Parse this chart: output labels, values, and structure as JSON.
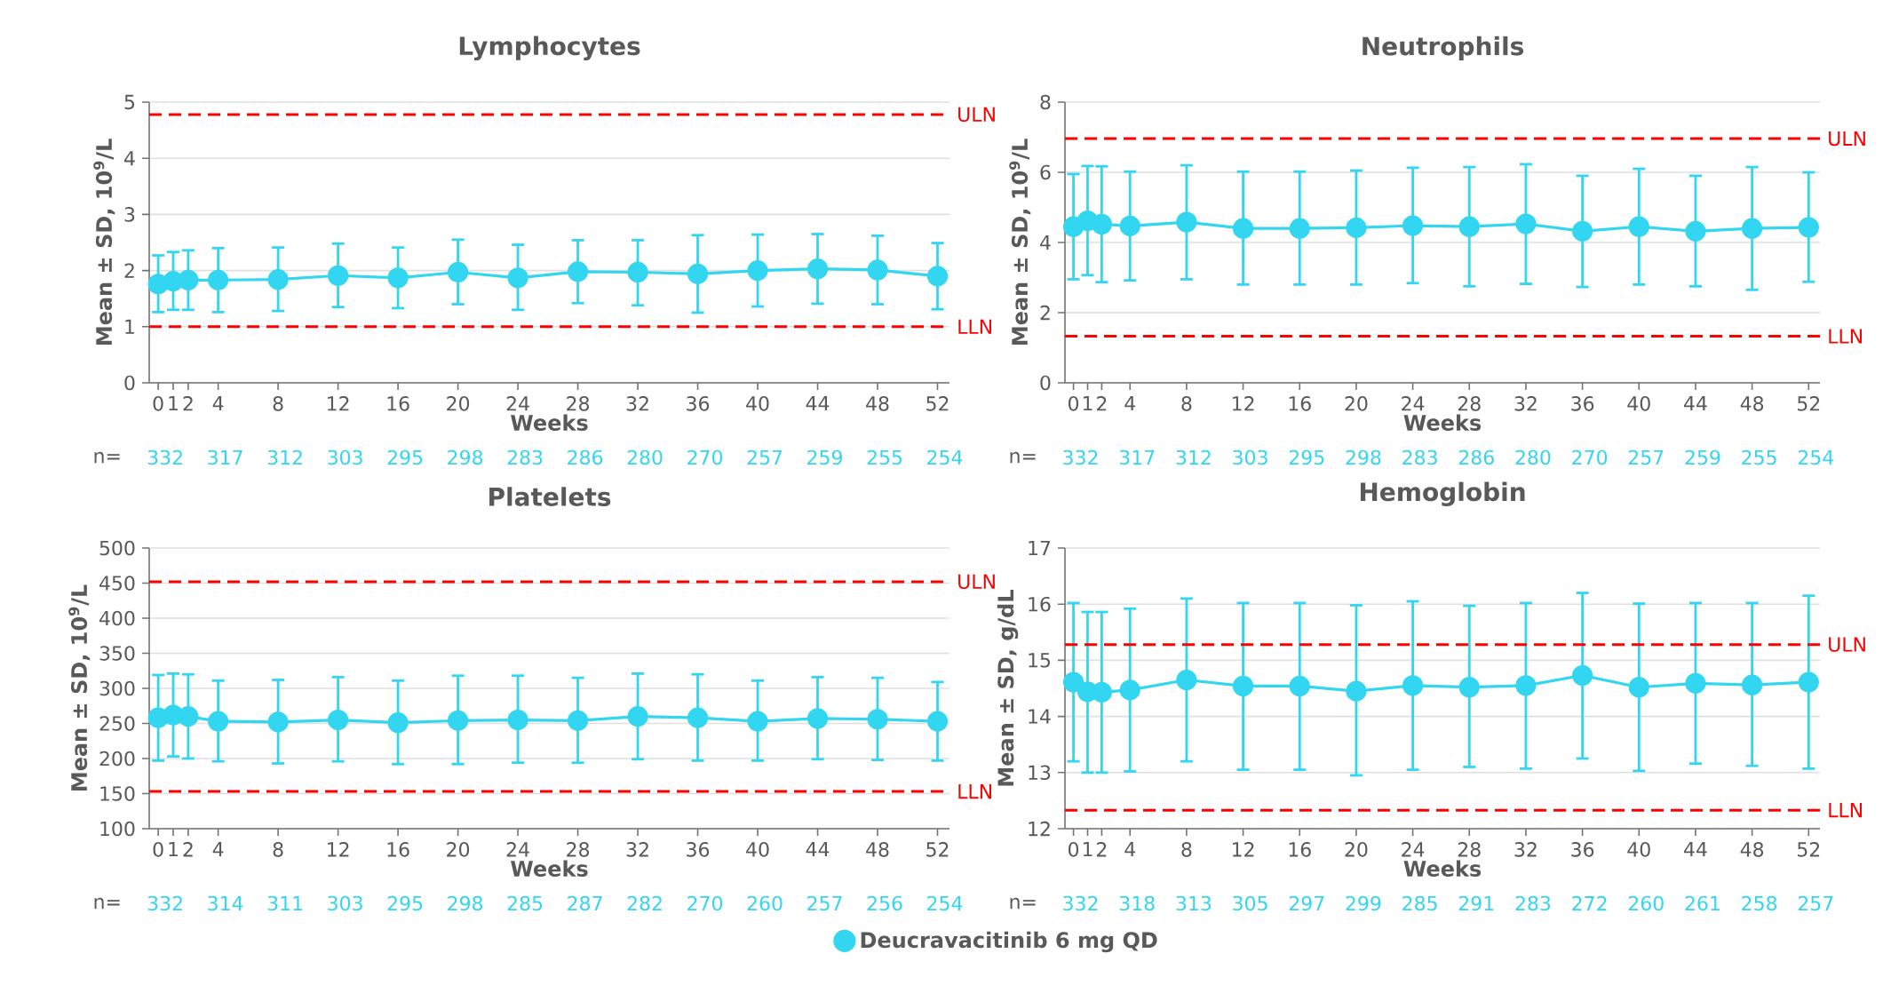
{
  "chart_data": [
    {
      "type": "line",
      "title": "Lymphocytes",
      "xlabel": "Weeks",
      "ylabel": "Mean ± SD, 10$^{9}$/L",
      "x": [
        0,
        1,
        2,
        4,
        8,
        12,
        16,
        20,
        24,
        28,
        32,
        36,
        40,
        44,
        48,
        52
      ],
      "series": [
        {
          "color": "#33d6f0",
          "values": [
            1.76,
            1.81,
            1.83,
            1.83,
            1.84,
            1.91,
            1.87,
            1.97,
            1.87,
            1.98,
            1.97,
            1.94,
            2.0,
            2.03,
            2.01,
            1.9
          ],
          "errors": [
            [
              1.26,
              2.27
            ],
            [
              1.3,
              2.33
            ],
            [
              1.3,
              2.36
            ],
            [
              1.26,
              2.4
            ],
            [
              1.28,
              2.41
            ],
            [
              1.35,
              2.48
            ],
            [
              1.33,
              2.41
            ],
            [
              1.4,
              2.55
            ],
            [
              1.3,
              2.46
            ],
            [
              1.42,
              2.54
            ],
            [
              1.38,
              2.54
            ],
            [
              1.25,
              2.63
            ],
            [
              1.36,
              2.64
            ],
            [
              1.41,
              2.65
            ],
            [
              1.4,
              2.62
            ],
            [
              1.31,
              2.49
            ]
          ]
        }
      ],
      "xlim": [
        -0.6,
        52.8
      ],
      "xticks": [
        0,
        1,
        2,
        4,
        8,
        12,
        16,
        20,
        24,
        28,
        32,
        36,
        40,
        44,
        48,
        52
      ],
      "ylim": [
        0,
        5
      ],
      "yticks": [
        0,
        1,
        2,
        3,
        4,
        5
      ],
      "ref_lines": [
        {
          "axis": "y",
          "value": 4.78,
          "label": "ULN",
          "color": "#ff0000",
          "line_style": "dashed"
        },
        {
          "axis": "y",
          "value": 1.0,
          "label": "LLN",
          "color": "#ff0000",
          "line_style": "dashed"
        }
      ],
      "annotations": [
        "n=",
        "332",
        "317",
        "312",
        "303",
        "295",
        "298",
        "283",
        "286",
        "280",
        "270",
        "257",
        "259",
        "255",
        "254"
      ],
      "grid": "y",
      "marker": "circle",
      "line_style": "solid"
    },
    {
      "type": "line",
      "title": "Neutrophils",
      "xlabel": "Weeks",
      "ylabel": "Mean ± SD, 10$^{9}$/L",
      "x": [
        0,
        1,
        2,
        4,
        8,
        12,
        16,
        20,
        24,
        28,
        32,
        36,
        40,
        44,
        48,
        52
      ],
      "series": [
        {
          "color": "#33d6f0",
          "values": [
            4.45,
            4.62,
            4.52,
            4.47,
            4.58,
            4.4,
            4.4,
            4.42,
            4.48,
            4.45,
            4.53,
            4.32,
            4.45,
            4.32,
            4.4,
            4.43
          ],
          "errors": [
            [
              2.95,
              5.95
            ],
            [
              3.07,
              6.18
            ],
            [
              2.87,
              6.17
            ],
            [
              2.92,
              6.02
            ],
            [
              2.95,
              6.2
            ],
            [
              2.8,
              6.02
            ],
            [
              2.8,
              6.02
            ],
            [
              2.8,
              6.05
            ],
            [
              2.84,
              6.13
            ],
            [
              2.75,
              6.15
            ],
            [
              2.82,
              6.23
            ],
            [
              2.73,
              5.9
            ],
            [
              2.8,
              6.1
            ],
            [
              2.75,
              5.9
            ],
            [
              2.65,
              6.15
            ],
            [
              2.88,
              6.0
            ]
          ]
        }
      ],
      "xlim": [
        -0.6,
        52.8
      ],
      "xticks": [
        0,
        1,
        2,
        4,
        8,
        12,
        16,
        20,
        24,
        28,
        32,
        36,
        40,
        44,
        48,
        52
      ],
      "ylim": [
        0,
        8
      ],
      "yticks": [
        0,
        2,
        4,
        6,
        8
      ],
      "ref_lines": [
        {
          "axis": "y",
          "value": 6.96,
          "label": "ULN",
          "color": "#ff0000",
          "line_style": "dashed"
        },
        {
          "axis": "y",
          "value": 1.33,
          "label": "LLN",
          "color": "#ff0000",
          "line_style": "dashed"
        }
      ],
      "annotations": [
        "n=",
        "332",
        "317",
        "312",
        "303",
        "295",
        "298",
        "283",
        "286",
        "280",
        "270",
        "257",
        "259",
        "255",
        "254"
      ],
      "grid": "y",
      "marker": "circle",
      "line_style": "solid"
    },
    {
      "type": "line",
      "title": "Platelets",
      "xlabel": "Weeks",
      "ylabel": "Mean ± SD, 10$^{9}$/L",
      "x": [
        0,
        1,
        2,
        4,
        8,
        12,
        16,
        20,
        24,
        28,
        32,
        36,
        40,
        44,
        48,
        52
      ],
      "series": [
        {
          "name": "Deucravacitinib 6 mg QD",
          "color": "#33d6f0",
          "values": [
            258,
            262,
            260,
            253,
            252,
            255,
            251,
            254,
            255,
            254,
            260,
            258,
            253,
            257,
            256,
            253
          ],
          "errors": [
            [
              197,
              319
            ],
            [
              203,
              321
            ],
            [
              200,
              320
            ],
            [
              196,
              311
            ],
            [
              193,
              312
            ],
            [
              196,
              316
            ],
            [
              192,
              311
            ],
            [
              192,
              318
            ],
            [
              194,
              318
            ],
            [
              194,
              315
            ],
            [
              199,
              321
            ],
            [
              197,
              320
            ],
            [
              197,
              311
            ],
            [
              199,
              316
            ],
            [
              198,
              315
            ],
            [
              197,
              309
            ]
          ]
        }
      ],
      "xlim": [
        -0.6,
        52.8
      ],
      "xticks": [
        0,
        1,
        2,
        4,
        8,
        12,
        16,
        20,
        24,
        28,
        32,
        36,
        40,
        44,
        48,
        52
      ],
      "ylim": [
        100,
        500
      ],
      "yticks": [
        100,
        150,
        200,
        250,
        300,
        350,
        400,
        450,
        500
      ],
      "ref_lines": [
        {
          "axis": "y",
          "value": 452,
          "label": "ULN",
          "color": "#ff0000",
          "line_style": "dashed"
        },
        {
          "axis": "y",
          "value": 153,
          "label": "LLN",
          "color": "#ff0000",
          "line_style": "dashed"
        }
      ],
      "annotations": [
        "n=",
        "332",
        "314",
        "311",
        "303",
        "295",
        "298",
        "285",
        "287",
        "282",
        "270",
        "260",
        "257",
        "256",
        "254"
      ],
      "grid": "y",
      "marker": "circle",
      "line_style": "solid",
      "legend": "bottom right"
    },
    {
      "type": "line",
      "title": "Hemoglobin",
      "xlabel": "Weeks",
      "ylabel": "Mean ± SD, g/dL",
      "x": [
        0,
        1,
        2,
        4,
        8,
        12,
        16,
        20,
        24,
        28,
        32,
        36,
        40,
        44,
        48,
        52
      ],
      "series": [
        {
          "color": "#33d6f0",
          "values": [
            14.61,
            14.44,
            14.43,
            14.47,
            14.65,
            14.54,
            14.54,
            14.45,
            14.55,
            14.52,
            14.55,
            14.73,
            14.52,
            14.59,
            14.56,
            14.61
          ],
          "errors": [
            [
              13.2,
              16.02
            ],
            [
              13.0,
              15.86
            ],
            [
              13.0,
              15.86
            ],
            [
              13.02,
              15.92
            ],
            [
              13.2,
              16.1
            ],
            [
              13.05,
              16.02
            ],
            [
              13.05,
              16.02
            ],
            [
              12.95,
              15.98
            ],
            [
              13.05,
              16.05
            ],
            [
              13.1,
              15.97
            ],
            [
              13.07,
              16.02
            ],
            [
              13.25,
              16.2
            ],
            [
              13.03,
              16.01
            ],
            [
              13.16,
              16.02
            ],
            [
              13.12,
              16.02
            ],
            [
              13.07,
              16.15
            ]
          ]
        }
      ],
      "xlim": [
        -0.6,
        52.8
      ],
      "xticks": [
        0,
        1,
        2,
        4,
        8,
        12,
        16,
        20,
        24,
        28,
        32,
        36,
        40,
        44,
        48,
        52
      ],
      "ylim": [
        12,
        17
      ],
      "yticks": [
        12,
        13,
        14,
        15,
        16,
        17
      ],
      "ref_lines": [
        {
          "axis": "y",
          "value": 15.28,
          "label": "ULN",
          "color": "#ff0000",
          "line_style": "dashed"
        },
        {
          "axis": "y",
          "value": 12.33,
          "label": "LLN",
          "color": "#ff0000",
          "line_style": "dashed"
        }
      ],
      "annotations": [
        "n=",
        "332",
        "318",
        "313",
        "305",
        "297",
        "299",
        "285",
        "291",
        "283",
        "272",
        "260",
        "261",
        "258",
        "257"
      ],
      "grid": "y",
      "marker": "circle",
      "line_style": "solid"
    }
  ]
}
